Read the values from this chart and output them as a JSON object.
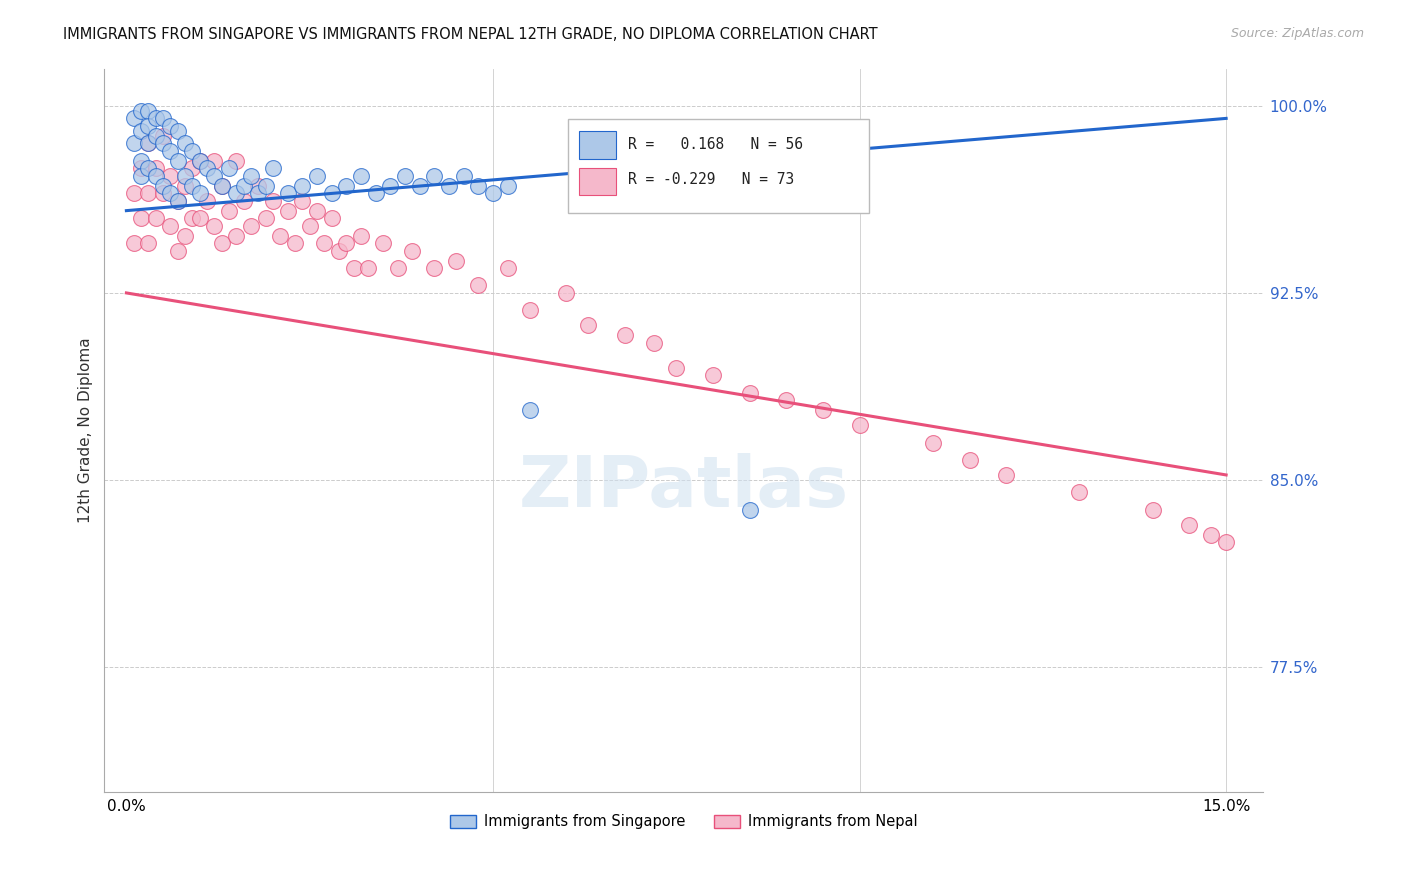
{
  "title": "IMMIGRANTS FROM SINGAPORE VS IMMIGRANTS FROM NEPAL 12TH GRADE, NO DIPLOMA CORRELATION CHART",
  "source": "Source: ZipAtlas.com",
  "ylabel": "12th Grade, No Diploma",
  "ytick_labels": [
    "100.0%",
    "92.5%",
    "85.0%",
    "77.5%"
  ],
  "ytick_values": [
    1.0,
    0.925,
    0.85,
    0.775
  ],
  "xlim": [
    0.0,
    0.15
  ],
  "ylim": [
    0.725,
    1.015
  ],
  "color_singapore": "#adc8e8",
  "color_nepal": "#f5b8cb",
  "line_color_singapore": "#2266cc",
  "line_color_nepal": "#e8507a",
  "singapore_R": 0.168,
  "singapore_N": 56,
  "nepal_R": -0.229,
  "nepal_N": 73,
  "sg_line_x": [
    0.0,
    0.15
  ],
  "sg_line_y": [
    0.958,
    0.995
  ],
  "np_line_x": [
    0.0,
    0.15
  ],
  "np_line_y": [
    0.925,
    0.852
  ],
  "sg_x": [
    0.001,
    0.001,
    0.002,
    0.002,
    0.002,
    0.002,
    0.003,
    0.003,
    0.003,
    0.003,
    0.004,
    0.004,
    0.004,
    0.005,
    0.005,
    0.005,
    0.006,
    0.006,
    0.006,
    0.007,
    0.007,
    0.007,
    0.008,
    0.008,
    0.009,
    0.009,
    0.01,
    0.01,
    0.011,
    0.012,
    0.013,
    0.014,
    0.015,
    0.016,
    0.017,
    0.018,
    0.019,
    0.02,
    0.022,
    0.024,
    0.026,
    0.028,
    0.03,
    0.032,
    0.034,
    0.036,
    0.038,
    0.04,
    0.042,
    0.044,
    0.046,
    0.048,
    0.05,
    0.052,
    0.055,
    0.085
  ],
  "sg_y": [
    0.995,
    0.985,
    0.998,
    0.99,
    0.978,
    0.972,
    0.998,
    0.992,
    0.985,
    0.975,
    0.995,
    0.988,
    0.972,
    0.995,
    0.985,
    0.968,
    0.992,
    0.982,
    0.965,
    0.99,
    0.978,
    0.962,
    0.985,
    0.972,
    0.982,
    0.968,
    0.978,
    0.965,
    0.975,
    0.972,
    0.968,
    0.975,
    0.965,
    0.968,
    0.972,
    0.965,
    0.968,
    0.975,
    0.965,
    0.968,
    0.972,
    0.965,
    0.968,
    0.972,
    0.965,
    0.968,
    0.972,
    0.968,
    0.972,
    0.968,
    0.972,
    0.968,
    0.965,
    0.968,
    0.878,
    0.838
  ],
  "np_x": [
    0.001,
    0.001,
    0.002,
    0.002,
    0.003,
    0.003,
    0.003,
    0.004,
    0.004,
    0.005,
    0.005,
    0.006,
    0.006,
    0.007,
    0.007,
    0.008,
    0.008,
    0.009,
    0.009,
    0.01,
    0.01,
    0.011,
    0.012,
    0.012,
    0.013,
    0.013,
    0.014,
    0.015,
    0.015,
    0.016,
    0.017,
    0.018,
    0.019,
    0.02,
    0.021,
    0.022,
    0.023,
    0.024,
    0.025,
    0.026,
    0.027,
    0.028,
    0.029,
    0.03,
    0.031,
    0.032,
    0.033,
    0.035,
    0.037,
    0.039,
    0.042,
    0.045,
    0.048,
    0.052,
    0.055,
    0.06,
    0.063,
    0.068,
    0.072,
    0.075,
    0.08,
    0.085,
    0.09,
    0.095,
    0.1,
    0.11,
    0.115,
    0.12,
    0.13,
    0.14,
    0.145,
    0.148,
    0.15
  ],
  "np_y": [
    0.965,
    0.945,
    0.975,
    0.955,
    0.985,
    0.965,
    0.945,
    0.975,
    0.955,
    0.988,
    0.965,
    0.972,
    0.952,
    0.962,
    0.942,
    0.968,
    0.948,
    0.975,
    0.955,
    0.978,
    0.955,
    0.962,
    0.978,
    0.952,
    0.968,
    0.945,
    0.958,
    0.978,
    0.948,
    0.962,
    0.952,
    0.968,
    0.955,
    0.962,
    0.948,
    0.958,
    0.945,
    0.962,
    0.952,
    0.958,
    0.945,
    0.955,
    0.942,
    0.945,
    0.935,
    0.948,
    0.935,
    0.945,
    0.935,
    0.942,
    0.935,
    0.938,
    0.928,
    0.935,
    0.918,
    0.925,
    0.912,
    0.908,
    0.905,
    0.895,
    0.892,
    0.885,
    0.882,
    0.878,
    0.872,
    0.865,
    0.858,
    0.852,
    0.845,
    0.838,
    0.832,
    0.828,
    0.825
  ]
}
